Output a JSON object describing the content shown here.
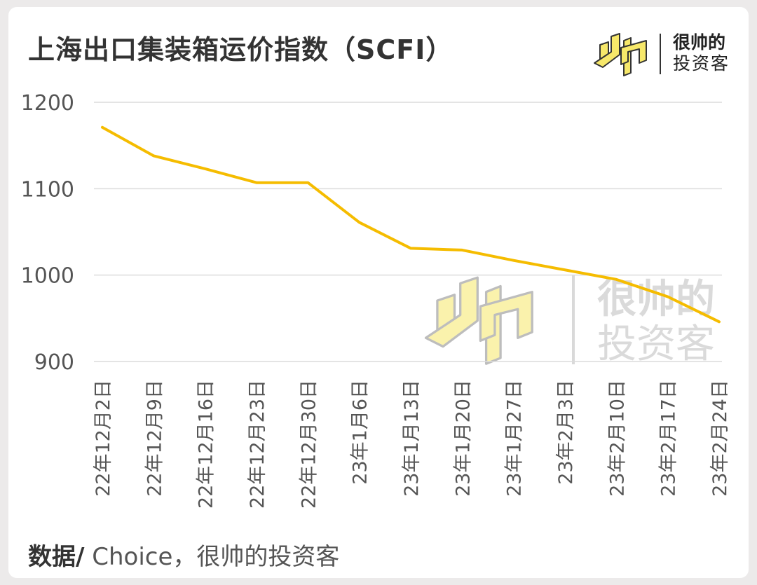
{
  "title": "上海出口集装箱运价指数（SCFI）",
  "brand": {
    "line1": "很帅的",
    "line2": "投资客",
    "watermark_line1": "很帅的",
    "watermark_line2": "投资客",
    "mark_color": "#f7e86a"
  },
  "source": {
    "label": "数据/",
    "text": " Choice，很帅的投资客"
  },
  "colors": {
    "line": "#f5bc00",
    "grid": "#dcdcdc",
    "tick_text": "#555555"
  },
  "chart_data": {
    "type": "line",
    "title": "上海出口集装箱运价指数（SCFI）",
    "xlabel": "",
    "ylabel": "",
    "ylim": [
      900,
      1200
    ],
    "yticks": [
      900,
      1000,
      1100,
      1200
    ],
    "grid": true,
    "categories": [
      "22年12月2日",
      "22年12月9日",
      "22年12月16日",
      "22年12月23日",
      "22年12月30日",
      "23年1月6日",
      "23年1月13日",
      "23年1月20日",
      "23年1月27日",
      "23年2月3日",
      "23年2月10日",
      "23年2月17日",
      "23年2月24日"
    ],
    "series": [
      {
        "values": [
          1171,
          1138,
          1123,
          1107,
          1107,
          1061,
          1031,
          1029,
          1017,
          1006,
          995,
          975,
          946
        ]
      }
    ]
  }
}
